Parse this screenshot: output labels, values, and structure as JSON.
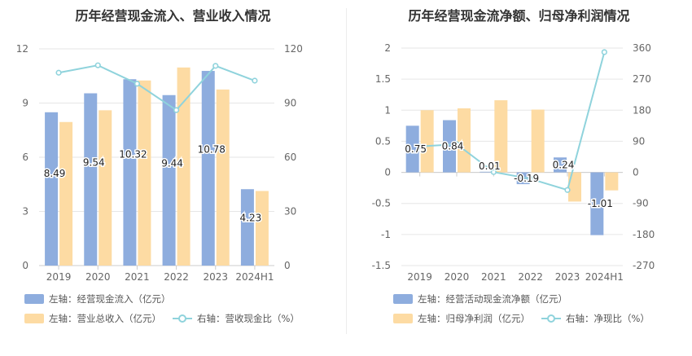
{
  "colors": {
    "blue": "#8eadde",
    "orange": "#fddba3",
    "cyan": "#8fd3dc",
    "grid": "#e6e6e6",
    "axis": "#666666"
  },
  "left": {
    "title": "历年经营现金流入、营业收入情况",
    "legend": {
      "bar1": "左轴：经营现金流入（亿元）",
      "bar2": "左轴：营业总收入（亿元）",
      "line": "右轴：营收现金比（%）"
    }
  },
  "right": {
    "title": "历年经营现金流净额、归母净利润情况",
    "legend": {
      "bar1": "左轴：经营活动现金流净额（亿元）",
      "bar2": "左轴：归母净利润（亿元）",
      "line": "右轴：净现比（%）"
    }
  },
  "chart_data": [
    {
      "type": "bar",
      "categories": [
        "2019",
        "2020",
        "2021",
        "2022",
        "2023",
        "2024H1"
      ],
      "series": [
        {
          "name": "经营现金流入（亿元）",
          "axis": "left",
          "values": [
            8.49,
            9.54,
            10.32,
            9.44,
            10.78,
            4.23
          ],
          "labels": [
            "8.49",
            "9.54",
            "10.32",
            "9.44",
            "10.78",
            "4.23"
          ]
        },
        {
          "name": "营业总收入（亿元）",
          "axis": "left",
          "values": [
            7.95,
            8.6,
            10.25,
            10.97,
            9.75,
            4.13
          ]
        },
        {
          "name": "营收现金比（%）",
          "type": "line",
          "axis": "right",
          "values": [
            106.8,
            110.9,
            100.7,
            86.1,
            110.6,
            102.4
          ]
        }
      ],
      "y_left": {
        "min": 0,
        "max": 12,
        "ticks": [
          "0",
          "3",
          "6",
          "9",
          "12"
        ]
      },
      "y_right": {
        "min": 0,
        "max": 120,
        "ticks": [
          "0",
          "30",
          "60",
          "90",
          "120"
        ]
      },
      "grid": true,
      "legend_position": "bottom"
    },
    {
      "type": "bar",
      "categories": [
        "2019",
        "2020",
        "2021",
        "2022",
        "2023",
        "2024H1"
      ],
      "series": [
        {
          "name": "经营活动现金流净额（亿元）",
          "axis": "left",
          "values": [
            0.75,
            0.84,
            0.01,
            -0.19,
            0.24,
            -1.01
          ],
          "labels": [
            "0.75",
            "0.84",
            "0.01",
            "-0.19",
            "0.24",
            "-1.01"
          ]
        },
        {
          "name": "归母净利润（亿元）",
          "axis": "left",
          "values": [
            1.0,
            1.03,
            1.16,
            1.01,
            -0.47,
            -0.29
          ]
        },
        {
          "name": "净现比（%）",
          "type": "line",
          "axis": "right",
          "values": [
            75,
            81.6,
            0.9,
            -18.8,
            -51.1,
            348.3
          ]
        }
      ],
      "y_left": {
        "min": -1.5,
        "max": 2,
        "ticks": [
          "-1.5",
          "-1",
          "-0.5",
          "0",
          "0.5",
          "1",
          "1.5",
          "2"
        ]
      },
      "y_right": {
        "min": -270,
        "max": 360,
        "ticks": [
          "-270",
          "-180",
          "-90",
          "0",
          "90",
          "180",
          "270",
          "360"
        ]
      },
      "grid": true,
      "legend_position": "bottom"
    }
  ]
}
